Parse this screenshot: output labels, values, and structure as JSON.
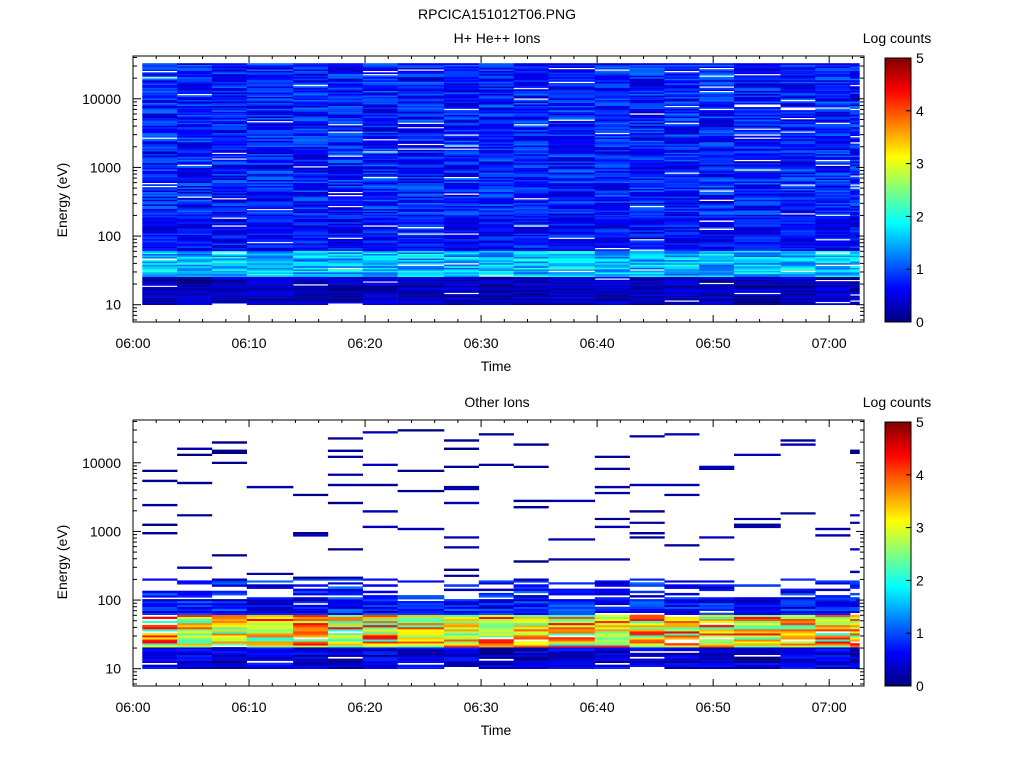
{
  "figure_title": "RPCICA151012T06.PNG",
  "colors": {
    "colormap": [
      "#00007f",
      "#0000ff",
      "#007fff",
      "#00ffff",
      "#7fff7f",
      "#ffff00",
      "#ff7f00",
      "#ff0000",
      "#7f0000"
    ]
  },
  "chart_data": [
    {
      "type": "heatmap",
      "title": "H+ He++ Ions",
      "xlabel": "Time",
      "ylabel": "Energy (eV)",
      "x_range": [
        "06:00",
        "07:03"
      ],
      "x_ticks": [
        "06:00",
        "06:10",
        "06:20",
        "06:30",
        "06:40",
        "06:50",
        "07:00"
      ],
      "y_scale": "log",
      "y_range": [
        5.6,
        42000
      ],
      "y_ticks": [
        "10",
        "100",
        "1000",
        "10000"
      ],
      "colorbar": {
        "label": "Log counts",
        "range": [
          0,
          5
        ],
        "ticks": [
          "0",
          "1",
          "2",
          "3",
          "4",
          "5"
        ]
      },
      "time_bins": [
        "06:00",
        "06:03",
        "06:06",
        "06:09",
        "06:13",
        "06:16",
        "06:19",
        "06:22",
        "06:26",
        "06:29",
        "06:32",
        "06:35",
        "06:39",
        "06:42",
        "06:45",
        "06:48",
        "06:51",
        "06:55",
        "06:58",
        "07:01"
      ],
      "energy_bins_eV": [
        10,
        15,
        22,
        33,
        50,
        75,
        110,
        170,
        250,
        380,
        570,
        850,
        1300,
        1900,
        2900,
        4300,
        6500,
        9700,
        14500,
        22000,
        33000
      ],
      "z_description": "log10 counts per time-energy cell",
      "z_levels": {
        "high_energy_above_200eV": [
          0.3,
          1.2
        ],
        "mid_energy_30_to_200eV": [
          0.3,
          1.0
        ],
        "low_energy_peak_25_to_60eV": [
          1.0,
          2.1
        ],
        "lowest_energy_below_20eV": [
          0.0,
          0.6
        ]
      }
    },
    {
      "type": "heatmap",
      "title": "Other Ions",
      "xlabel": "Time",
      "ylabel": "Energy (eV)",
      "x_range": [
        "06:00",
        "07:03"
      ],
      "x_ticks": [
        "06:00",
        "06:10",
        "06:20",
        "06:30",
        "06:40",
        "06:50",
        "07:00"
      ],
      "y_scale": "log",
      "y_range": [
        5.6,
        42000
      ],
      "y_ticks": [
        "10",
        "100",
        "1000",
        "10000"
      ],
      "colorbar": {
        "label": "Log counts",
        "range": [
          0,
          5
        ],
        "ticks": [
          "0",
          "1",
          "2",
          "3",
          "4",
          "5"
        ]
      },
      "time_bins": [
        "06:00",
        "06:03",
        "06:06",
        "06:09",
        "06:13",
        "06:16",
        "06:19",
        "06:22",
        "06:26",
        "06:29",
        "06:32",
        "06:35",
        "06:39",
        "06:42",
        "06:45",
        "06:48",
        "06:51",
        "06:55",
        "06:58",
        "07:01"
      ],
      "z_description": "log10 counts per time-energy cell",
      "z_levels": {
        "sparse_lines_above_200eV": [
          0.0,
          0.3
        ],
        "band_100_to_200eV": [
          0.2,
          1.2
        ],
        "peak_band_25_to_60eV": [
          2.0,
          4.4
        ],
        "lowest_energy_below_20eV": [
          0.0,
          0.8
        ]
      }
    }
  ]
}
